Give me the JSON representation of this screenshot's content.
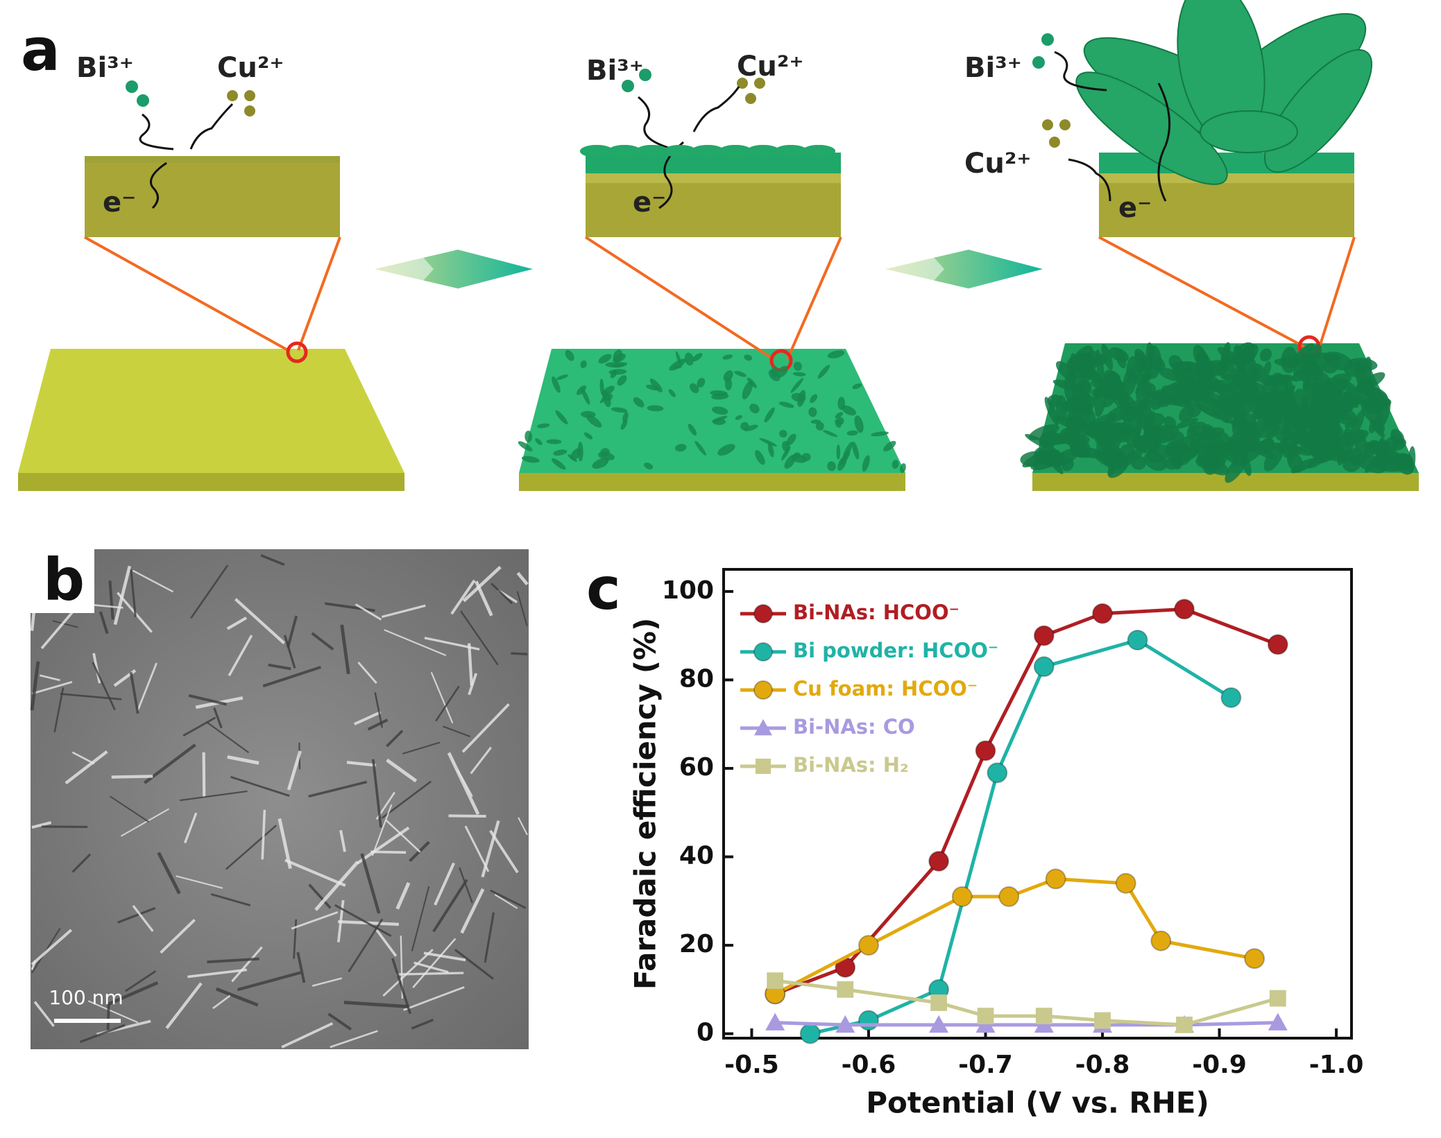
{
  "panel_labels": [
    "a",
    "b",
    "c"
  ],
  "schematic": {
    "stages": [
      {
        "bi": "Bi³⁺",
        "cu": "Cu²⁺",
        "e": "e⁻"
      },
      {
        "bi": "Bi³⁺",
        "cu": "Cu²⁺",
        "e": "e⁻"
      },
      {
        "bi": "Bi³⁺",
        "cu": "Cu²⁺",
        "e": "e⁻"
      }
    ]
  },
  "sem": {
    "scale_bar": "100 nm"
  },
  "chart_data": {
    "type": "line",
    "xlabel": "Potential (V vs. RHE)",
    "ylabel": "Faradaic efficiency (%)",
    "xlim": [
      -0.476,
      -1.013
    ],
    "ylim": [
      -1,
      105
    ],
    "xticks": [
      -0.5,
      -0.6,
      -0.7,
      -0.8,
      -0.9,
      {
        "value": -1,
        "label": "-1.0"
      }
    ],
    "yticks": [
      0,
      20,
      40,
      60,
      80,
      100
    ],
    "legend": "upper left",
    "series": [
      {
        "name": "Bi-NAs: HCOO⁻",
        "color": "#b01e23",
        "marker": "circle",
        "x": [
          -0.52,
          -0.58,
          -0.66,
          -0.7,
          -0.75,
          -0.8,
          -0.87,
          -0.95
        ],
        "values": [
          9,
          15,
          39,
          64,
          90,
          95,
          96,
          88
        ]
      },
      {
        "name": "Bi powder: HCOO⁻",
        "color": "#1fb3a6",
        "marker": "circle",
        "x": [
          -0.55,
          -0.6,
          -0.66,
          -0.71,
          -0.75,
          -0.83,
          -0.91
        ],
        "values": [
          0,
          3,
          10,
          59,
          83,
          89,
          76
        ]
      },
      {
        "name": "Cu foam: HCOO⁻",
        "color": "#e2a90e",
        "marker": "circle",
        "x": [
          -0.52,
          -0.6,
          -0.68,
          -0.72,
          -0.76,
          -0.82,
          -0.85,
          -0.93
        ],
        "values": [
          9,
          20,
          31,
          31,
          35,
          34,
          21,
          17
        ]
      },
      {
        "name": "Bi-NAs: CO",
        "color": "#a99ae0",
        "marker": "triangle",
        "x": [
          -0.52,
          -0.58,
          -0.66,
          -0.7,
          -0.75,
          -0.8,
          -0.87,
          -0.95
        ],
        "values": [
          2.5,
          2,
          2,
          2,
          2,
          2,
          2,
          2.5
        ]
      },
      {
        "name": "Bi-NAs: H₂",
        "color": "#c9c98e",
        "marker": "square",
        "x": [
          -0.52,
          -0.58,
          -0.66,
          -0.7,
          -0.75,
          -0.8,
          -0.87,
          -0.95
        ],
        "values": [
          12,
          10,
          7,
          4,
          4,
          3,
          2,
          8
        ]
      }
    ]
  }
}
